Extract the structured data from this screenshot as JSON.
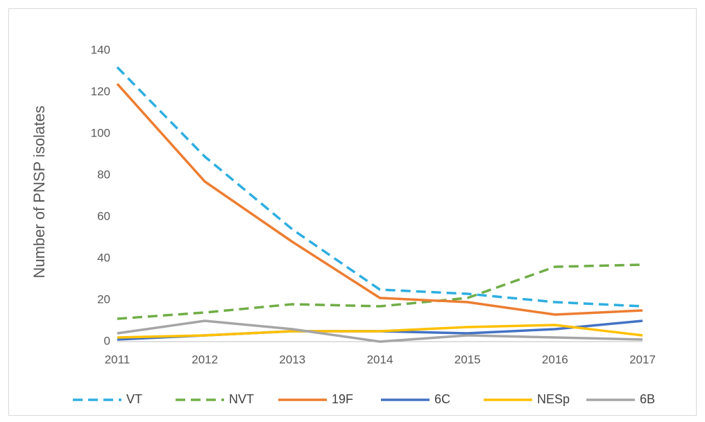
{
  "chart_data": {
    "type": "line",
    "y_label": "Number of PNSP isolates",
    "categories": [
      "2011",
      "2012",
      "2013",
      "2014",
      "2015",
      "2016",
      "2017"
    ],
    "series": [
      {
        "name": "VT",
        "color": "#2eaee0",
        "dashed": true,
        "values": [
          132,
          89,
          54,
          25,
          23,
          19,
          17
        ]
      },
      {
        "name": "NVT",
        "color": "#70ad47",
        "dashed": true,
        "values": [
          11,
          14,
          18,
          17,
          21,
          36,
          37
        ]
      },
      {
        "name": "19F",
        "color": "#ed7d31",
        "dashed": false,
        "values": [
          124,
          77,
          48,
          21,
          19,
          13,
          15
        ]
      },
      {
        "name": "6C",
        "color": "#4472c4",
        "dashed": false,
        "values": [
          1,
          3,
          5,
          5,
          4,
          6,
          10
        ]
      },
      {
        "name": "NESp",
        "color": "#ffc000",
        "dashed": false,
        "values": [
          2,
          3,
          5,
          5,
          7,
          8,
          3
        ]
      },
      {
        "name": "6B",
        "color": "#a5a5a5",
        "dashed": false,
        "values": [
          4,
          10,
          6,
          0,
          3,
          2,
          1
        ]
      }
    ],
    "ylim": [
      0,
      140
    ],
    "yticks": [
      0,
      20,
      40,
      60,
      80,
      100,
      120,
      140
    ],
    "grid": false,
    "legend": "bottom"
  }
}
